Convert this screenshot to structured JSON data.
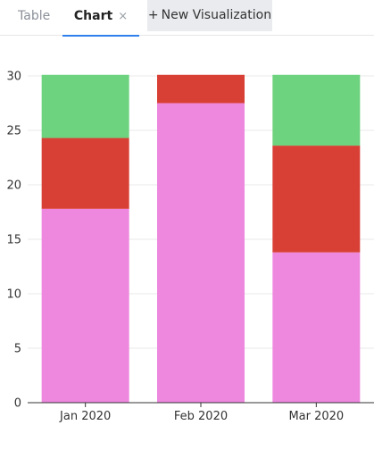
{
  "tabs": {
    "table_label": "Table",
    "chart_label": "Chart",
    "close_glyph": "×",
    "new_viz_label": "New Visualization",
    "plus_glyph": "+"
  },
  "colors": {
    "accent": "#2f80ed",
    "series_pink": "#ee88de",
    "series_red": "#d94035",
    "series_green": "#6dd37e"
  },
  "chart_data": {
    "type": "bar",
    "stacked": true,
    "categories": [
      "Jan 2020",
      "Feb 2020",
      "Mar 2020"
    ],
    "series": [
      {
        "color": "#ee88de",
        "values": [
          17.8,
          27.5,
          13.8
        ]
      },
      {
        "color": "#d94035",
        "values": [
          6.5,
          2.6,
          9.8
        ]
      },
      {
        "color": "#6dd37e",
        "values": [
          5.8,
          0,
          6.5
        ]
      }
    ],
    "ylim": [
      0,
      30
    ],
    "yticks": [
      0,
      5,
      10,
      15,
      20,
      25,
      30
    ],
    "ytick_labels": [
      "0",
      "5",
      "10",
      "15",
      "20",
      "25",
      "30"
    ],
    "grid": true,
    "legend": "none"
  }
}
